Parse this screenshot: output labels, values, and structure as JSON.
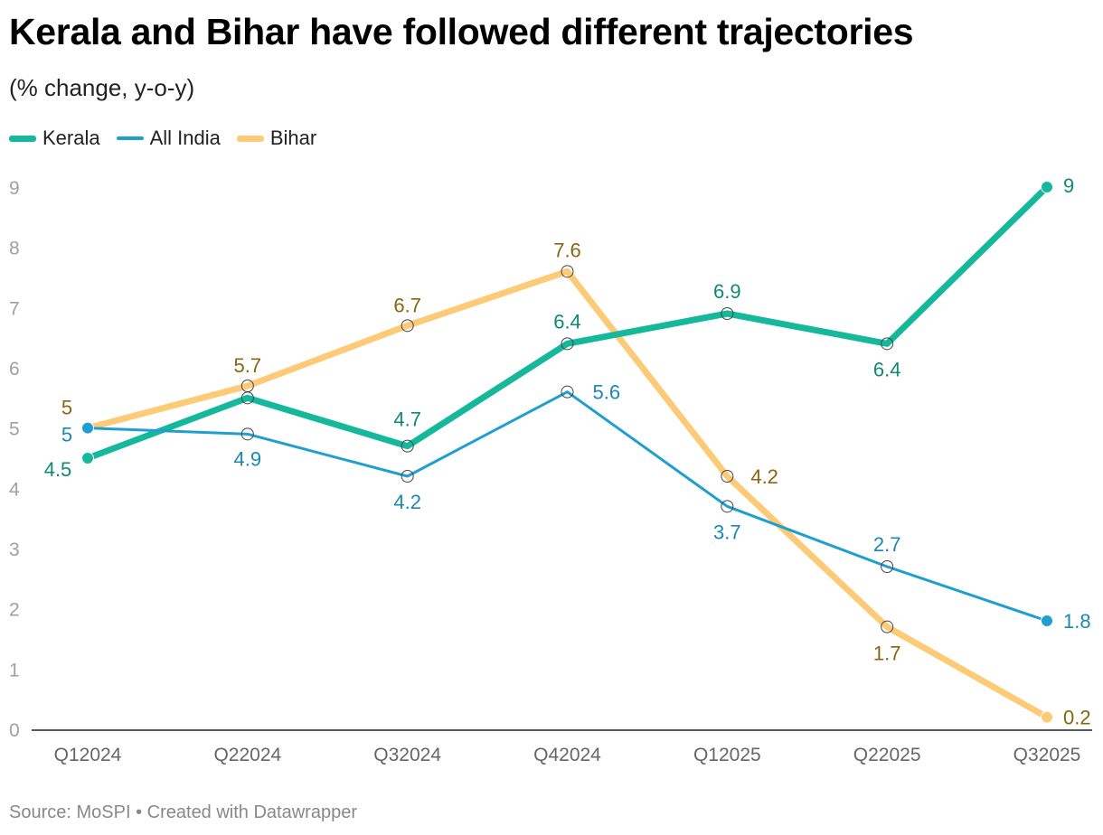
{
  "header": {
    "title": "Kerala and Bihar have followed different trajectories",
    "subtitle": "(% change, y-o-y)"
  },
  "footer": {
    "source": "Source: MoSPI",
    "separator": "•",
    "credit": "Created with Datawrapper"
  },
  "chart_data": {
    "type": "line",
    "title": "Kerala and Bihar have followed different trajectories",
    "subtitle": "(% change, y-o-y)",
    "xlabel": "",
    "ylabel": "",
    "categories": [
      "Q12024",
      "Q22024",
      "Q32024",
      "Q42024",
      "Q12025",
      "Q22025",
      "Q32025"
    ],
    "ylim": [
      0,
      9
    ],
    "yticks": [
      "0",
      "1",
      "2",
      "3",
      "4",
      "5",
      "6",
      "7",
      "8",
      "9"
    ],
    "grid": false,
    "legend": "top-left",
    "series": [
      {
        "name": "Kerala",
        "color": "#15b89a",
        "label_color": "#0e8a74",
        "values": [
          4.5,
          5.5,
          4.7,
          6.4,
          6.9,
          6.4,
          9
        ],
        "labels": [
          "4.5",
          "",
          "4.7",
          "6.4",
          "6.9",
          "6.4",
          "9"
        ]
      },
      {
        "name": "All India",
        "color": "#1f9fcf",
        "label_color": "#1a88b2",
        "values": [
          5,
          4.9,
          4.2,
          5.6,
          3.7,
          2.7,
          1.8
        ],
        "labels": [
          "5",
          "4.9",
          "4.2",
          "5.6",
          "3.7",
          "2.7",
          "1.8"
        ]
      },
      {
        "name": "Bihar",
        "color": "#fdcb78",
        "label_color": "#8a6410",
        "values": [
          5,
          5.7,
          6.7,
          7.6,
          4.2,
          1.7,
          0.2
        ],
        "labels": [
          "5",
          "5.7",
          "6.7",
          "7.6",
          "4.2",
          "1.7",
          "0.2"
        ]
      }
    ]
  }
}
